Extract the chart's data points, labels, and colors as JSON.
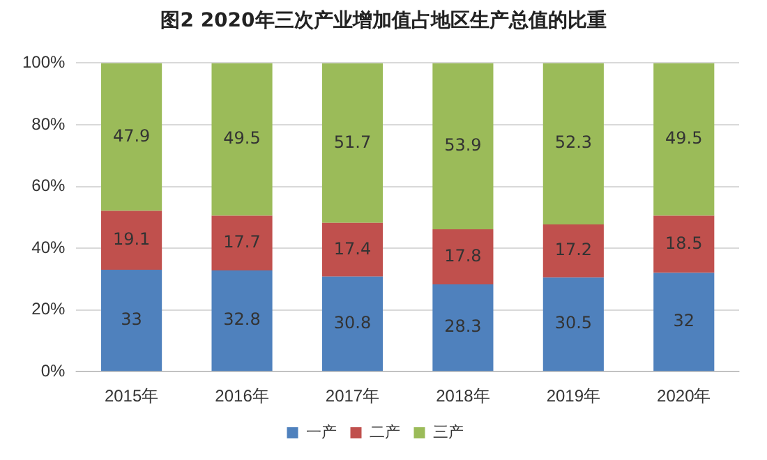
{
  "chart_data": {
    "type": "bar",
    "stacked": true,
    "title": "图2 2020年三次产业增加值占地区生产总值的比重",
    "categories": [
      "2015年",
      "2016年",
      "2017年",
      "2018年",
      "2019年",
      "2020年"
    ],
    "series": [
      {
        "name": "一产",
        "color": "#4f81bd",
        "values": [
          33,
          32.8,
          30.8,
          28.3,
          30.5,
          32
        ]
      },
      {
        "name": "二产",
        "color": "#c0504d",
        "values": [
          19.1,
          17.7,
          17.4,
          17.8,
          17.2,
          18.5
        ]
      },
      {
        "name": "三产",
        "color": "#9bbb59",
        "values": [
          47.9,
          49.5,
          51.7,
          53.9,
          52.3,
          49.5
        ]
      }
    ],
    "ylim": [
      0,
      100
    ],
    "yticks": [
      {
        "value": 0,
        "label": "0%"
      },
      {
        "value": 20,
        "label": "20%"
      },
      {
        "value": 40,
        "label": "40%"
      },
      {
        "value": 60,
        "label": "60%"
      },
      {
        "value": 80,
        "label": "80%"
      },
      {
        "value": 100,
        "label": "100%"
      }
    ],
    "grid": "y",
    "legend": "bottom",
    "data_labels": true
  }
}
